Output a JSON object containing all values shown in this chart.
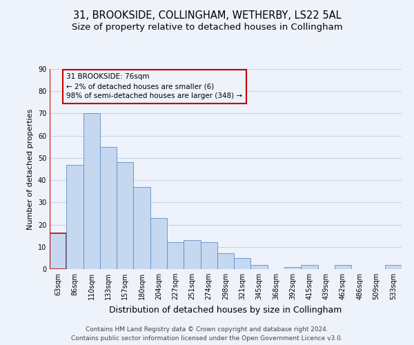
{
  "title": "31, BROOKSIDE, COLLINGHAM, WETHERBY, LS22 5AL",
  "subtitle": "Size of property relative to detached houses in Collingham",
  "xlabel": "Distribution of detached houses by size in Collingham",
  "ylabel": "Number of detached properties",
  "categories": [
    "63sqm",
    "86sqm",
    "110sqm",
    "133sqm",
    "157sqm",
    "180sqm",
    "204sqm",
    "227sqm",
    "251sqm",
    "274sqm",
    "298sqm",
    "321sqm",
    "345sqm",
    "368sqm",
    "392sqm",
    "415sqm",
    "439sqm",
    "462sqm",
    "486sqm",
    "509sqm",
    "533sqm"
  ],
  "values": [
    16,
    47,
    70,
    55,
    48,
    37,
    23,
    12,
    13,
    12,
    7,
    5,
    2,
    0,
    1,
    2,
    0,
    2,
    0,
    0,
    2
  ],
  "bar_color": "#c5d8f0",
  "bar_edge_color": "#5b8cc8",
  "highlight_bar_edge_color": "#c00000",
  "annotation_line1": "31 BROOKSIDE: 76sqm",
  "annotation_line2": "← 2% of detached houses are smaller (6)",
  "annotation_line3": "98% of semi-detached houses are larger (348) →",
  "annotation_box_edge_color": "#c00000",
  "ylim": [
    0,
    90
  ],
  "yticks": [
    0,
    10,
    20,
    30,
    40,
    50,
    60,
    70,
    80,
    90
  ],
  "grid_color": "#c8d4e8",
  "background_color": "#eef2fa",
  "footer_line1": "Contains HM Land Registry data © Crown copyright and database right 2024.",
  "footer_line2": "Contains public sector information licensed under the Open Government Licence v3.0.",
  "title_fontsize": 10.5,
  "subtitle_fontsize": 9.5,
  "xlabel_fontsize": 9,
  "ylabel_fontsize": 8,
  "tick_fontsize": 7,
  "annotation_fontsize": 7.5,
  "footer_fontsize": 6.5
}
